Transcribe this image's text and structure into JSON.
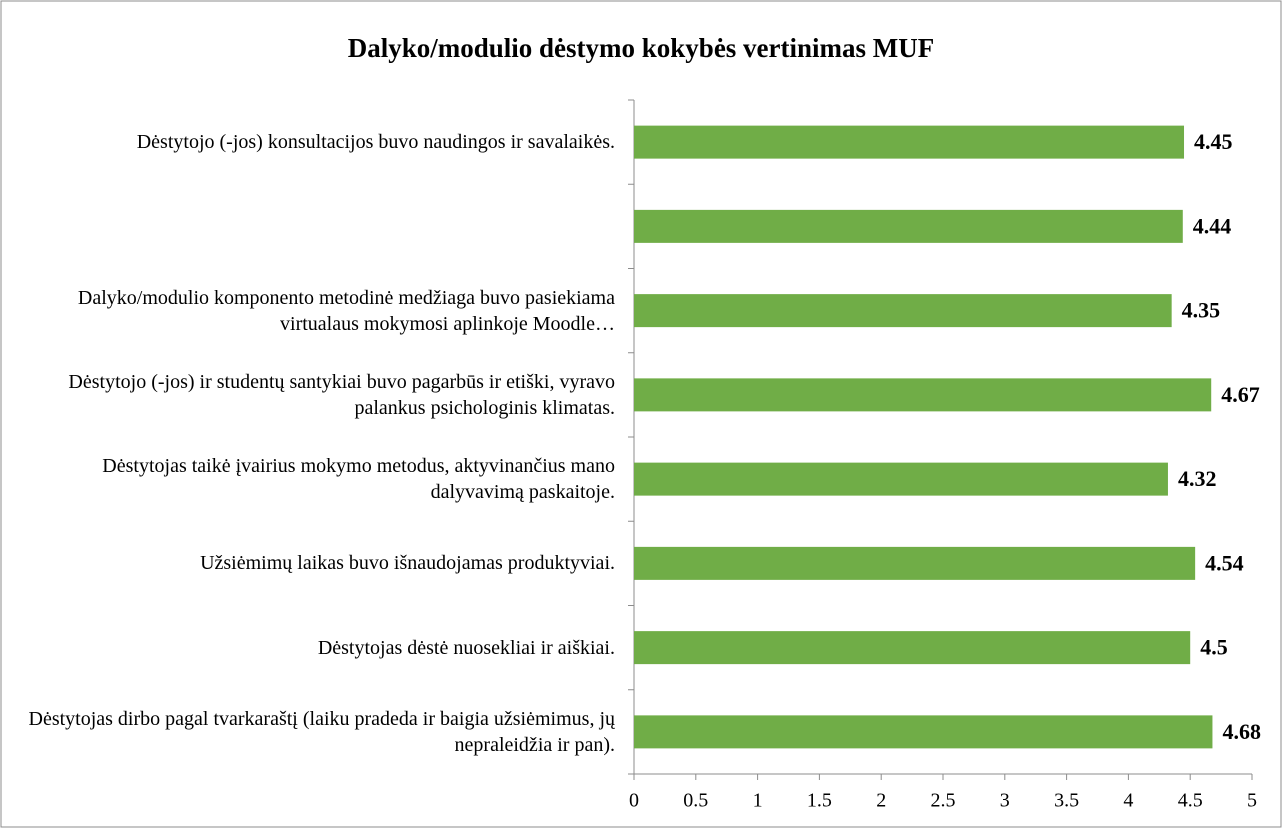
{
  "chart_data": {
    "type": "bar",
    "orientation": "horizontal",
    "title": "Dalyko/modulio dėstymo kokybės vertinimas MUF",
    "categories": [
      "Dėstytojo (-jos) konsultacijos buvo naudingos ir savalaikės.",
      null,
      "Dalyko/modulio komponento metodinė medžiaga buvo pasiekiama virtualaus mokymosi aplinkoje Moodle…",
      "Dėstytojo (-jos) ir studentų santykiai buvo pagarbūs ir etiški, vyravo palankus psichologinis klimatas.",
      "Dėstytojas taikė įvairius mokymo metodus, aktyvinančius mano dalyvavimą paskaitoje.",
      "Užsiėmimų laikas buvo išnaudojamas produktyviai.",
      "Dėstytojas dėstė nuosekliai ir aiškiai.",
      "Dėstytojas dirbo pagal tvarkaraštį (laiku pradeda ir baigia užsiėmimus, jų nepraleidžia ir pan)."
    ],
    "values": [
      4.45,
      4.44,
      4.35,
      4.67,
      4.32,
      4.54,
      4.5,
      4.68
    ],
    "color": "#70ad47",
    "xlim": [
      0,
      5
    ],
    "xticks": [
      0,
      0.5,
      1,
      1.5,
      2,
      2.5,
      3,
      3.5,
      4,
      4.5,
      5
    ],
    "grid": false
  }
}
